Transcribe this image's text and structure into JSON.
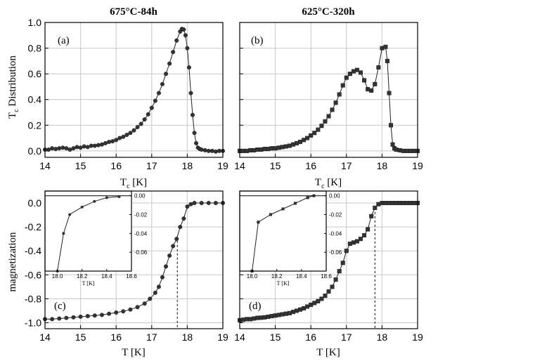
{
  "chart_data": [
    {
      "id": "a",
      "type": "line",
      "marker": "circle",
      "title": "675°C-84h",
      "panel_label": "(a)",
      "xlabel": "T",
      "xlabel_sub": "c",
      "xlabel_unit": " [K]",
      "ylabel": "T",
      "ylabel_sub": "c",
      "ylabel_rest": " Distribution",
      "xlim": [
        14,
        19
      ],
      "ylim": [
        -0.05,
        1.0
      ],
      "xticks": [
        "14",
        "15",
        "16",
        "17",
        "18",
        "19"
      ],
      "yticks": [
        "0.0",
        "0.2",
        "0.4",
        "0.6",
        "0.8",
        "1.0"
      ],
      "grid": true,
      "series": [
        {
          "x": [
            14.0,
            14.1,
            14.2,
            14.3,
            14.4,
            14.5,
            14.6,
            14.7,
            14.8,
            14.9,
            15.0,
            15.1,
            15.2,
            15.3,
            15.4,
            15.5,
            15.6,
            15.7,
            15.8,
            15.9,
            16.0,
            16.1,
            16.2,
            16.3,
            16.4,
            16.5,
            16.6,
            16.7,
            16.8,
            16.9,
            17.0,
            17.1,
            17.2,
            17.3,
            17.4,
            17.5,
            17.6,
            17.7,
            17.8,
            17.85,
            17.9,
            17.95,
            18.0,
            18.05,
            18.1,
            18.15,
            18.2,
            18.25,
            18.3,
            18.35,
            18.4,
            18.5,
            18.6,
            18.7,
            18.8,
            18.9,
            19.0
          ],
          "y": [
            0.01,
            0.01,
            0.02,
            0.015,
            0.02,
            0.025,
            0.02,
            0.01,
            0.02,
            0.03,
            0.025,
            0.035,
            0.03,
            0.04,
            0.04,
            0.045,
            0.05,
            0.06,
            0.07,
            0.075,
            0.085,
            0.1,
            0.11,
            0.125,
            0.14,
            0.16,
            0.185,
            0.21,
            0.245,
            0.285,
            0.335,
            0.39,
            0.45,
            0.52,
            0.6,
            0.68,
            0.77,
            0.86,
            0.93,
            0.95,
            0.945,
            0.9,
            0.8,
            0.65,
            0.45,
            0.28,
            0.14,
            0.06,
            0.025,
            0.015,
            0.01,
            0.005,
            0.0,
            0.0,
            -0.005,
            0.0,
            0.0
          ]
        }
      ]
    },
    {
      "id": "b",
      "type": "line",
      "marker": "square",
      "title": "625°C-320h",
      "panel_label": "(b)",
      "xlabel": "T",
      "xlabel_sub": "c",
      "xlabel_unit": " [K]",
      "xlim": [
        14,
        19
      ],
      "ylim": [
        -0.05,
        1.0
      ],
      "xticks": [
        "14",
        "15",
        "16",
        "17",
        "18",
        "19"
      ],
      "grid": true,
      "series": [
        {
          "x": [
            14.0,
            14.1,
            14.2,
            14.3,
            14.4,
            14.5,
            14.6,
            14.7,
            14.8,
            14.9,
            15.0,
            15.1,
            15.2,
            15.3,
            15.4,
            15.5,
            15.6,
            15.7,
            15.8,
            15.9,
            16.0,
            16.1,
            16.2,
            16.3,
            16.4,
            16.5,
            16.6,
            16.7,
            16.8,
            16.9,
            17.0,
            17.1,
            17.2,
            17.3,
            17.4,
            17.5,
            17.6,
            17.7,
            17.8,
            17.9,
            18.0,
            18.1,
            18.15,
            18.2,
            18.25,
            18.3,
            18.35,
            18.4,
            18.5,
            18.6,
            18.7,
            18.8,
            18.9,
            19.0
          ],
          "y": [
            0.0,
            0.0,
            0.0,
            0.005,
            0.005,
            0.01,
            0.01,
            0.015,
            0.015,
            0.02,
            0.02,
            0.025,
            0.03,
            0.035,
            0.04,
            0.05,
            0.06,
            0.07,
            0.085,
            0.1,
            0.12,
            0.14,
            0.165,
            0.195,
            0.23,
            0.27,
            0.32,
            0.375,
            0.44,
            0.51,
            0.57,
            0.6,
            0.62,
            0.63,
            0.61,
            0.55,
            0.48,
            0.47,
            0.52,
            0.65,
            0.8,
            0.81,
            0.7,
            0.45,
            0.2,
            0.05,
            0.02,
            0.01,
            0.005,
            0.0,
            0.0,
            0.0,
            0.0,
            0.0
          ]
        }
      ]
    },
    {
      "id": "c",
      "type": "line",
      "marker": "circle",
      "panel_label": "(c)",
      "xlabel": "T [K]",
      "ylabel": "magnetization",
      "xlim": [
        14,
        19
      ],
      "ylim": [
        -1.05,
        0.1
      ],
      "xticks": [
        "14",
        "15",
        "16",
        "17",
        "18",
        "19"
      ],
      "yticks": [
        "0.0",
        "-0.2",
        "-0.4",
        "-0.6",
        "-0.8",
        "-1.0"
      ],
      "dashed_vline_x": 17.72,
      "grid": true,
      "series": [
        {
          "x": [
            14.0,
            14.2,
            14.4,
            14.6,
            14.8,
            15.0,
            15.2,
            15.4,
            15.6,
            15.8,
            16.0,
            16.2,
            16.4,
            16.6,
            16.8,
            16.95,
            17.1,
            17.2,
            17.3,
            17.4,
            17.5,
            17.6,
            17.7,
            17.8,
            17.9,
            18.0,
            18.1,
            18.2,
            18.4,
            18.6,
            18.8,
            19.0
          ],
          "y": [
            -0.97,
            -0.97,
            -0.965,
            -0.96,
            -0.955,
            -0.95,
            -0.945,
            -0.94,
            -0.935,
            -0.925,
            -0.915,
            -0.905,
            -0.89,
            -0.87,
            -0.84,
            -0.8,
            -0.75,
            -0.7,
            -0.62,
            -0.53,
            -0.44,
            -0.36,
            -0.3,
            -0.2,
            -0.13,
            -0.03,
            -0.01,
            0.0,
            0.0,
            0.0,
            0.0,
            0.0
          ]
        }
      ],
      "inset": {
        "xlabel": "T [K]",
        "xlim": [
          17.9,
          18.6
        ],
        "ylim": [
          -0.08,
          0.005
        ],
        "xticks": [
          "18.0",
          "18.2",
          "18.4",
          "18.6"
        ],
        "yticks": [
          "0.00",
          "-0.02",
          "-0.04",
          "-0.06"
        ],
        "x": [
          18.0,
          18.05,
          18.1,
          18.2,
          18.3,
          18.4,
          18.5
        ],
        "y": [
          -0.08,
          -0.04,
          -0.02,
          -0.012,
          -0.006,
          -0.002,
          -0.001
        ]
      }
    },
    {
      "id": "d",
      "type": "line",
      "marker": "square",
      "panel_label": "(d)",
      "xlabel": "T [K]",
      "xlim": [
        14,
        19
      ],
      "ylim": [
        -1.05,
        0.1
      ],
      "xticks": [
        "14",
        "15",
        "16",
        "17",
        "18",
        "19"
      ],
      "dashed_vline_x": 17.8,
      "grid": true,
      "series": [
        {
          "x": [
            14.0,
            14.1,
            14.2,
            14.3,
            14.4,
            14.5,
            14.6,
            14.7,
            14.8,
            14.9,
            15.0,
            15.1,
            15.2,
            15.3,
            15.4,
            15.5,
            15.6,
            15.7,
            15.8,
            15.9,
            16.0,
            16.1,
            16.2,
            16.3,
            16.4,
            16.5,
            16.6,
            16.7,
            16.8,
            16.9,
            17.0,
            17.1,
            17.2,
            17.3,
            17.4,
            17.5,
            17.6,
            17.7,
            17.8,
            17.9,
            18.0,
            18.1,
            18.2,
            18.3,
            18.4,
            18.5,
            18.6,
            18.7,
            18.8,
            18.9,
            19.0
          ],
          "y": [
            -0.98,
            -0.975,
            -0.97,
            -0.97,
            -0.965,
            -0.96,
            -0.958,
            -0.955,
            -0.95,
            -0.945,
            -0.94,
            -0.935,
            -0.93,
            -0.925,
            -0.92,
            -0.91,
            -0.9,
            -0.89,
            -0.88,
            -0.865,
            -0.85,
            -0.835,
            -0.82,
            -0.8,
            -0.775,
            -0.74,
            -0.7,
            -0.64,
            -0.57,
            -0.5,
            -0.4,
            -0.34,
            -0.33,
            -0.32,
            -0.3,
            -0.27,
            -0.22,
            -0.11,
            -0.04,
            -0.01,
            0.0,
            0.0,
            0.0,
            0.0,
            0.0,
            0.0,
            0.0,
            0.0,
            0.0,
            0.0,
            0.0
          ]
        }
      ],
      "inset": {
        "xlabel": "T [K]",
        "xlim": [
          17.9,
          18.6
        ],
        "ylim": [
          -0.08,
          0.005
        ],
        "xticks": [
          "18.0",
          "18.2",
          "18.4",
          "18.6"
        ],
        "yticks": [
          "0.00",
          "-0.02",
          "-0.04",
          "-0.06"
        ],
        "x": [
          18.0,
          18.05,
          18.15,
          18.25,
          18.35,
          18.45,
          18.5
        ],
        "y": [
          -0.08,
          -0.028,
          -0.02,
          -0.014,
          -0.008,
          -0.002,
          0.0
        ]
      }
    }
  ]
}
